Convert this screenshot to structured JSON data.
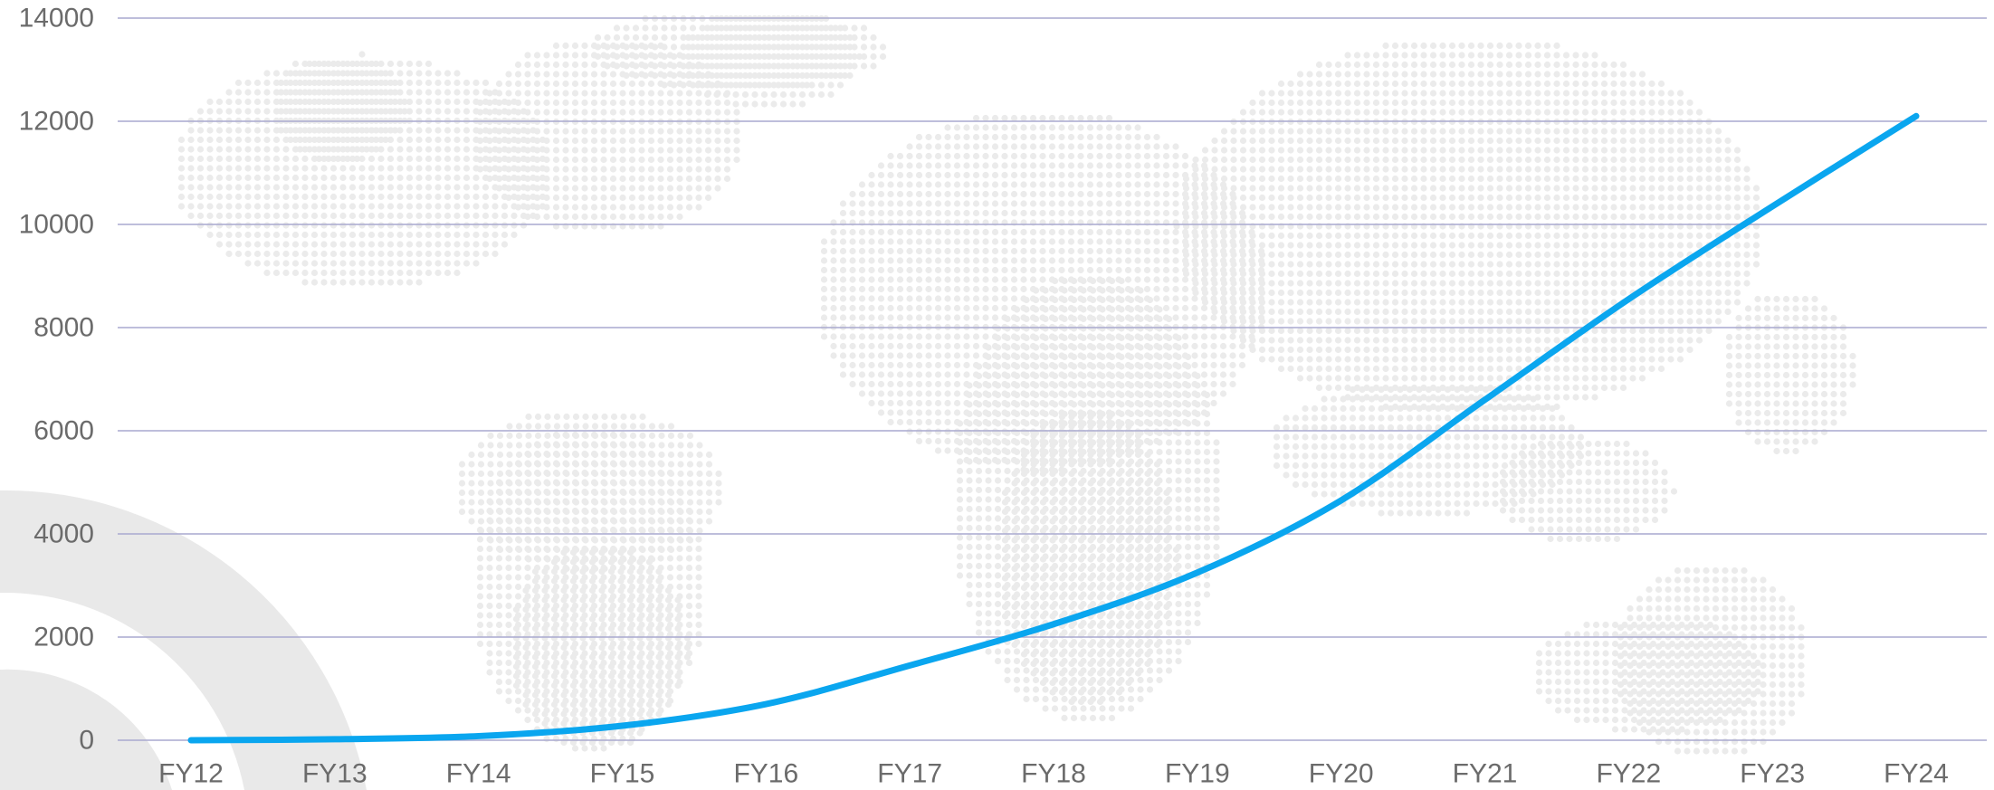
{
  "chart_data": {
    "type": "line",
    "title": "",
    "xlabel": "",
    "ylabel": "",
    "categories": [
      "FY12",
      "FY13",
      "FY14",
      "FY15",
      "FY16",
      "FY17",
      "FY18",
      "FY19",
      "FY20",
      "FY21",
      "FY22",
      "FY23",
      "FY24"
    ],
    "series": [
      {
        "values": [
          0,
          20,
          80,
          280,
          700,
          1450,
          2250,
          3250,
          4650,
          6600,
          8550,
          10350,
          12100
        ]
      }
    ],
    "y_ticks": [
      0,
      2000,
      4000,
      6000,
      8000,
      10000,
      12000,
      14000
    ],
    "ylim": [
      0,
      14000
    ],
    "grid": "horizontal",
    "legend": "none",
    "line_color": "#0aa6ef",
    "grid_color": "#a9a9cf",
    "background": "dotted world map, light grey"
  }
}
